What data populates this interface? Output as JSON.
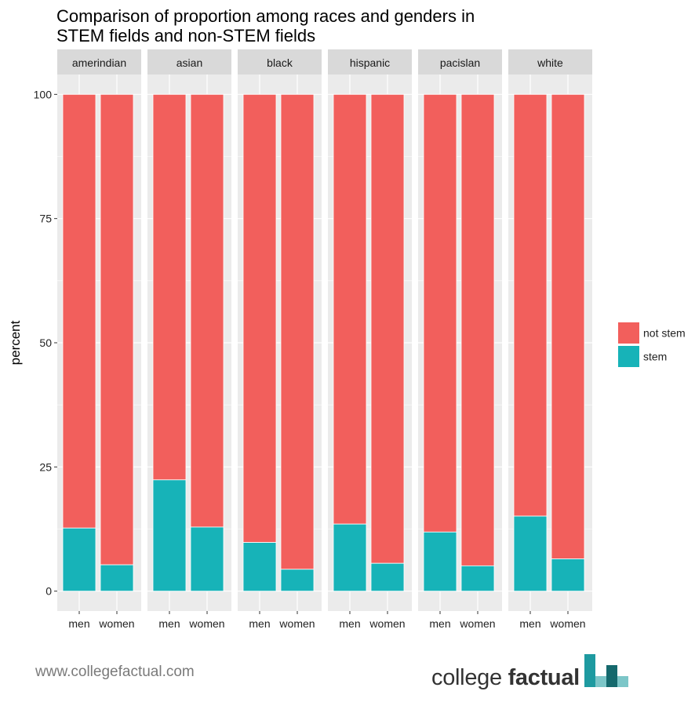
{
  "title_lines": [
    "Comparison of proportion among races and genders in",
    "STEM fields and non-STEM fields"
  ],
  "colors": {
    "not_stem": "#F25F5C",
    "stem": "#17B3B8",
    "panel_bg": "#EBEBEB",
    "strip_bg": "#D9D9D9",
    "grid": "#FFFFFF"
  },
  "chart_data": {
    "type": "bar",
    "stacked": true,
    "facet_variable": "race",
    "facets": [
      "amerindian",
      "asian",
      "black",
      "hispanic",
      "pacislan",
      "white"
    ],
    "categories": [
      "men",
      "women"
    ],
    "series": [
      {
        "name": "not stem",
        "values": [
          [
            87.3,
            94.7
          ],
          [
            77.6,
            87.1
          ],
          [
            90.2,
            95.6
          ],
          [
            86.5,
            94.4
          ],
          [
            88.1,
            94.9
          ],
          [
            84.9,
            93.5
          ]
        ]
      },
      {
        "name": "stem",
        "values": [
          [
            12.7,
            5.3
          ],
          [
            22.4,
            12.9
          ],
          [
            9.8,
            4.4
          ],
          [
            13.5,
            5.6
          ],
          [
            11.9,
            5.1
          ],
          [
            15.1,
            6.5
          ]
        ]
      }
    ],
    "ylabel": "percent",
    "xlabel": "",
    "ylim": [
      -4,
      104
    ],
    "yticks": [
      0,
      25,
      50,
      75,
      100
    ],
    "grid": true,
    "legend_position": "right",
    "legend": [
      {
        "label": "not stem",
        "series": "not stem"
      },
      {
        "label": "stem",
        "series": "stem"
      }
    ]
  },
  "footer": {
    "url": "www.collegefactual.com",
    "brand_regular": "college ",
    "brand_bold": "factual"
  }
}
